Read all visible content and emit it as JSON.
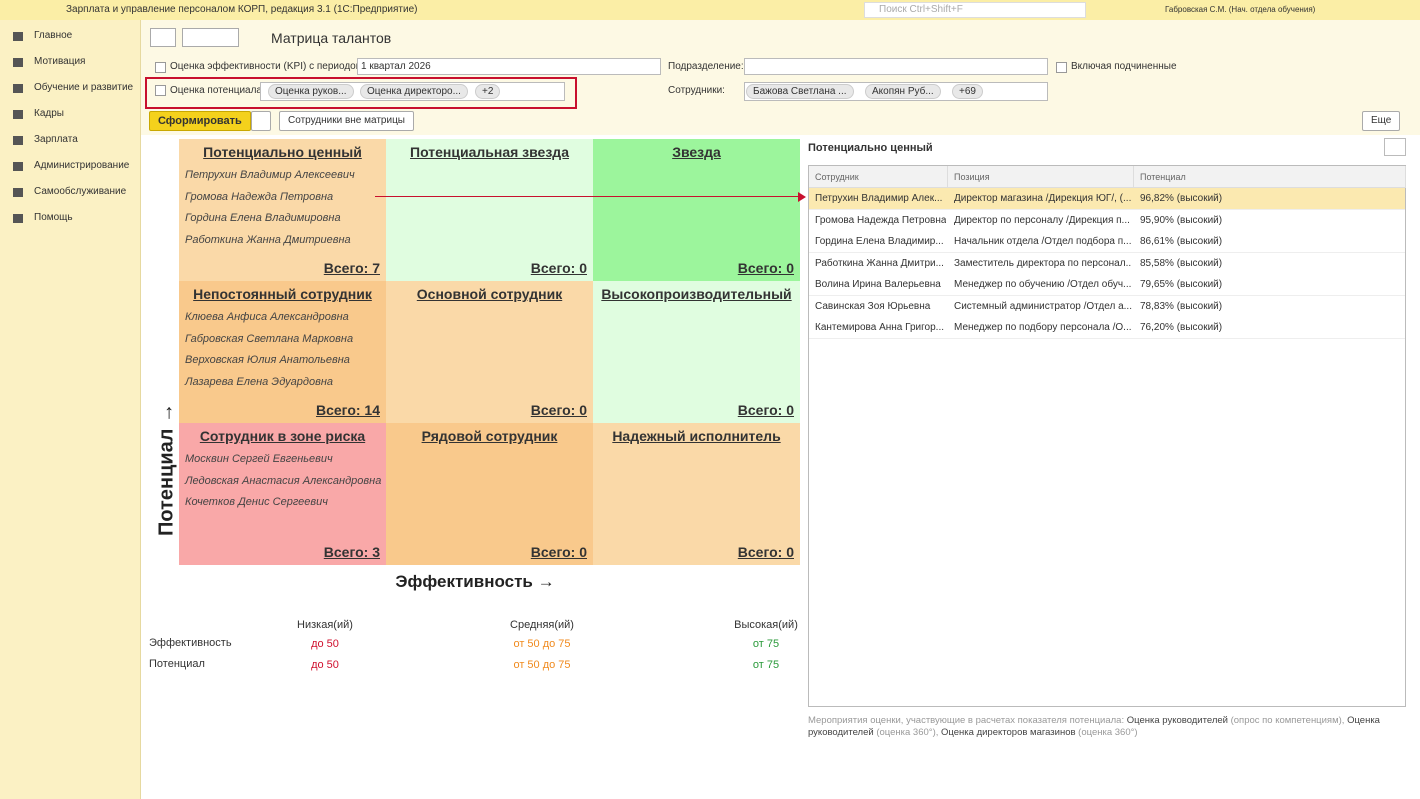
{
  "titlebar": {
    "app_title": "Зарплата и управление персоналом КОРП, редакция 3.1  (1С:Предприятие)",
    "search": "Поиск Ctrl+Shift+F",
    "user": "Габровская С.М. (Нач. отдела обучения)"
  },
  "sidebar": {
    "items": [
      "Главное",
      "Мотивация",
      "Обучение и развитие",
      "Кадры",
      "Зарплата",
      "Администрирование",
      "Самообслуживание",
      "Помощь"
    ]
  },
  "header": {
    "title": "Матрица талантов"
  },
  "filters": {
    "kpi_label": "Оценка эффективности (KPI) с периодом:",
    "kpi_period": "1 квартал 2026",
    "dept_label": "Подразделение:",
    "include_sub": "Включая подчиненные",
    "potential_label": "Оценка потенциала:",
    "potential_tags": [
      "Оценка руков...",
      "Оценка директоро...",
      "+2"
    ],
    "employees_label": "Сотрудники:",
    "employee_tags": [
      "Бажова Светлана ...",
      "Акопян Руб...",
      "+69"
    ]
  },
  "buttons": {
    "generate": "Сформировать",
    "outside": "Сотрудники вне матрицы",
    "more": "Еще"
  },
  "matrix": {
    "y_label": "Потенциал →",
    "x_label": "Эффективность →",
    "cells": [
      {
        "title": "Потенциально ценный",
        "employees": [
          "Петрухин Владимир Алексеевич",
          "Громова Надежда Петровна",
          "Гордина Елена Владимировна",
          "Работкина Жанна Дмитриевна"
        ],
        "total": "Всего: 7",
        "color": "#fad9a8"
      },
      {
        "title": "Потенциальная звезда",
        "employees": [],
        "total": "Всего: 0",
        "color": "#e0fde0"
      },
      {
        "title": "Звезда",
        "employees": [],
        "total": "Всего: 0",
        "color": "#9cf59c"
      },
      {
        "title": "Непостоянный сотрудник",
        "employees": [
          "Клюева Анфиса Александровна",
          "Габровская Светлана Марковна",
          "Верховская Юлия Анатольевна",
          "Лазарева Елена Эдуардовна"
        ],
        "total": "Всего: 14",
        "color": "#f9c98c"
      },
      {
        "title": "Основной сотрудник",
        "employees": [],
        "total": "Всего: 0",
        "color": "#fad9a8"
      },
      {
        "title": "Высокопроизводительный",
        "employees": [],
        "total": "Всего: 0",
        "color": "#e0fde0"
      },
      {
        "title": "Сотрудник в зоне риска",
        "employees": [
          "Москвин Сергей Евгеньевич",
          "Ледовская Анастасия Александровна",
          "Кочетков Денис Сергеевич"
        ],
        "total": "Всего: 3",
        "color": "#f9a8a8"
      },
      {
        "title": "Рядовой сотрудник",
        "employees": [],
        "total": "Всего: 0",
        "color": "#f9c98c"
      },
      {
        "title": "Надежный исполнитель",
        "employees": [],
        "total": "Всего: 0",
        "color": "#fad9a8"
      }
    ]
  },
  "legend": {
    "headers": [
      "Низкая(ий)",
      "Средняя(ий)",
      "Высокая(ий)"
    ],
    "rows": [
      {
        "label": "Эффективность",
        "values": [
          "до 50",
          "от 50 до 75",
          "от 75"
        ]
      },
      {
        "label": "Потенциал",
        "values": [
          "до 50",
          "от 50 до 75",
          "от 75"
        ]
      }
    ]
  },
  "panel": {
    "title": "Потенциально ценный",
    "columns": [
      "Сотрудник",
      "Позиция",
      "Потенциал"
    ],
    "rows": [
      [
        "Петрухин Владимир Алек...",
        "Директор магазина /Дирекция ЮГ/, (...",
        "96,82% (высокий)"
      ],
      [
        "Громова Надежда Петровна",
        "Директор по персоналу /Дирекция п...",
        "95,90% (высокий)"
      ],
      [
        "Гордина Елена Владимир...",
        "Начальник отдела /Отдел подбора п...",
        "86,61% (высокий)"
      ],
      [
        "Работкина Жанна Дмитри...",
        "Заместитель директора по персонал...",
        "85,58% (высокий)"
      ],
      [
        "Волина Ирина Валерьевна",
        "Менеджер по обучению /Отдел обуч...",
        "79,65% (высокий)"
      ],
      [
        "Савинская Зоя Юрьевна",
        "Системный администратор /Отдел а...",
        "78,83% (высокий)"
      ],
      [
        "Кантемирова Анна Григор...",
        "Менеджер по подбору персонала /О...",
        "76,20% (высокий)"
      ]
    ],
    "footnote": [
      "Мероприятия оценки, участвующие в расчетах показателя потенциала: ",
      "Оценка руководителей",
      "  (опрос по компетенциям), ",
      "Оценка руководителей",
      "  (оценка 360°), ",
      "Оценка директоров магазинов",
      "  (оценка 360°)"
    ]
  }
}
